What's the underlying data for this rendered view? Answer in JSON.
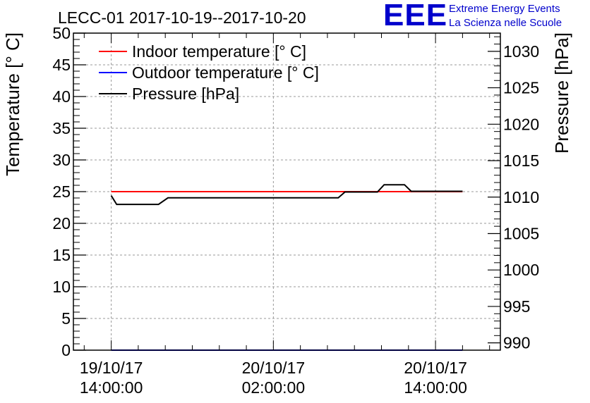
{
  "brand": {
    "logo": "EEE",
    "line1": "Extreme Energy Events",
    "line2": "La Scienza nelle Scuole",
    "color": "#0000cc"
  },
  "chart_data": {
    "type": "line",
    "title": "LECC-01 2017-10-19--2017-10-20",
    "ylabel": "Temperature [° C]",
    "y2label": "Pressure [hPa]",
    "ylim": [
      0,
      50
    ],
    "y2lim": [
      989,
      1032.5
    ],
    "yticks": [
      0,
      5,
      10,
      15,
      20,
      25,
      30,
      35,
      40,
      45,
      50
    ],
    "y2ticks": [
      990,
      995,
      1000,
      1005,
      1010,
      1015,
      1020,
      1025,
      1030
    ],
    "xticks": [
      {
        "line1": "19/10/17",
        "line2": "14:00:00"
      },
      {
        "line1": "20/10/17",
        "line2": "02:00:00"
      },
      {
        "line1": "20/10/17",
        "line2": "14:00:00"
      }
    ],
    "x_unit": "hours",
    "xlim": [
      -2.8,
      28.8
    ],
    "x_tick_positions": [
      0,
      12,
      24
    ],
    "grid": true,
    "legend_position": "top-left",
    "series": [
      {
        "name": "Indoor temperature [° C]",
        "color": "#ff0000",
        "axis": "left",
        "x": [
          0,
          26
        ],
        "y": [
          25,
          25
        ]
      },
      {
        "name": "Outdoor temperature [° C]",
        "color": "#0000ff",
        "axis": "left",
        "x": [
          0,
          26
        ],
        "y": [
          0,
          0
        ]
      },
      {
        "name": "Pressure [hPa]",
        "color": "#000000",
        "axis": "right",
        "x": [
          0,
          0.4,
          3.5,
          4.2,
          16.8,
          17.3,
          19.7,
          20.2,
          21.7,
          22.2,
          26
        ],
        "y": [
          1010.2,
          1009.0,
          1009.0,
          1009.9,
          1009.9,
          1010.7,
          1010.7,
          1011.7,
          1011.7,
          1010.8,
          1010.8
        ]
      }
    ]
  }
}
